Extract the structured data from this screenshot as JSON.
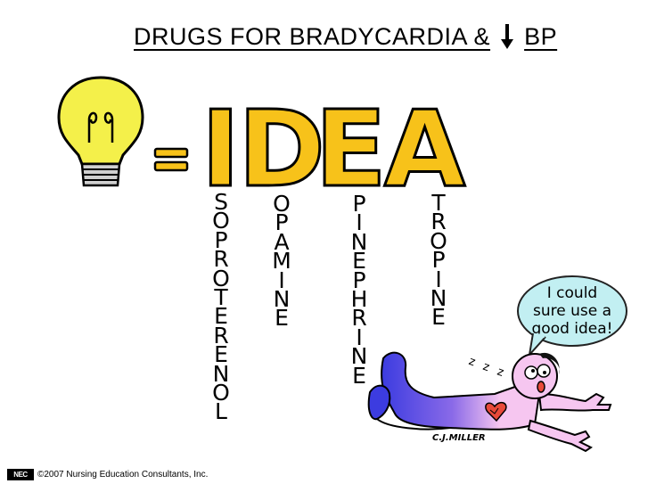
{
  "title": {
    "text_before": "DRUGS FOR BRADYCARDIA &",
    "text_after": "BP",
    "arrow_icon": "down-arrow-icon"
  },
  "equals": "=",
  "acronym": [
    {
      "letter": "I",
      "word_rest": "SOPROTERENOL"
    },
    {
      "letter": "D",
      "word_rest": "OPAMINE"
    },
    {
      "letter": "E",
      "word_rest": "PINEPHRINE"
    },
    {
      "letter": "A",
      "word_rest": "TROPINE"
    }
  ],
  "speech_bubble": {
    "line1": "I could",
    "line2": "sure use a",
    "line3": "good idea!"
  },
  "snore": "z z z",
  "signature": "C.J.MILLER",
  "footer": {
    "logo": "NEC",
    "copyright": "©2007 Nursing Education Consultants, Inc."
  },
  "colors": {
    "letters": "#F7C21A",
    "bulb": "#F4F04A",
    "bubble": "#C2EFF2",
    "skin": "#F6C6F0",
    "pants": "#3C3CE0",
    "heart": "#E84A3A"
  }
}
